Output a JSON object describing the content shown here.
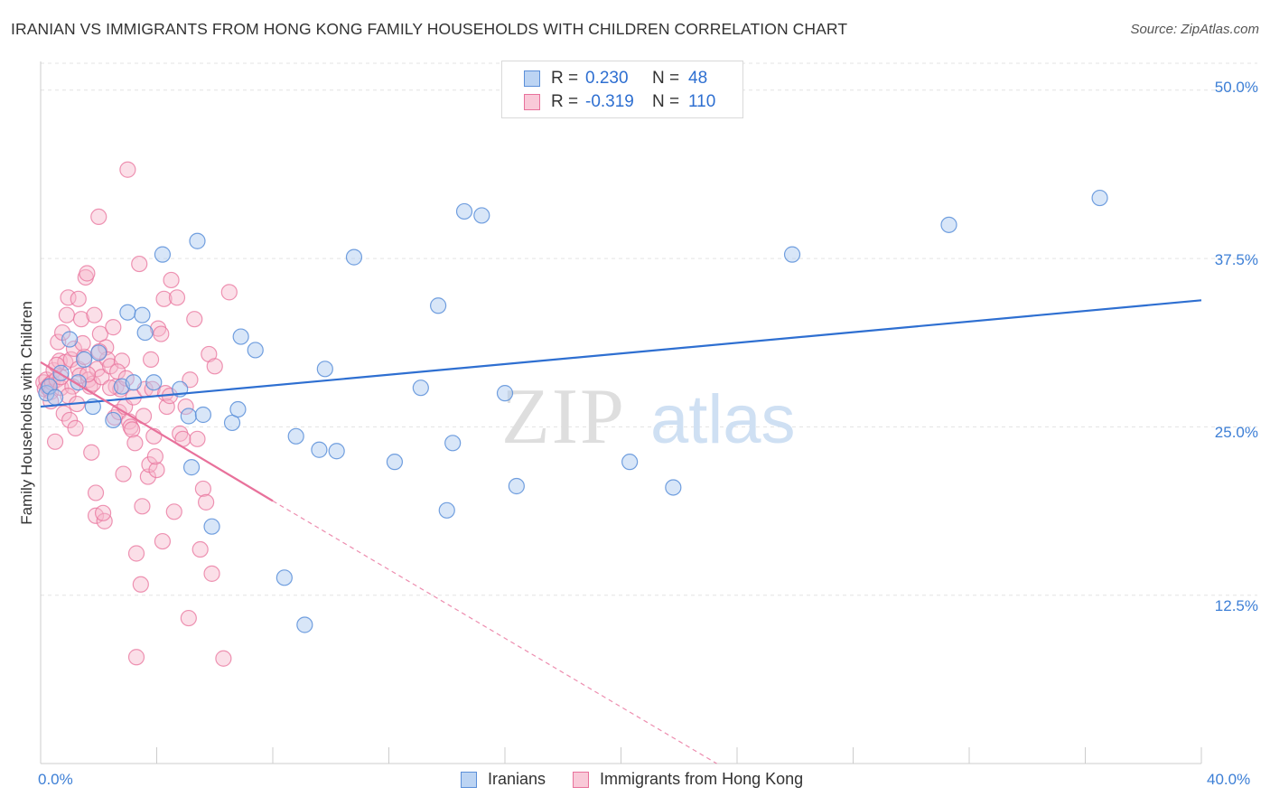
{
  "title": "IRANIAN VS IMMIGRANTS FROM HONG KONG FAMILY HOUSEHOLDS WITH CHILDREN CORRELATION CHART",
  "source": "Source: ZipAtlas.com",
  "watermark": "ZIPatlas",
  "colors": {
    "blue": "#5b8fd9",
    "blue_fill": "#a9c8f0",
    "pink": "#e8719b",
    "pink_fill": "#f7b9cd",
    "blue_line": "#2e6fd1",
    "pink_line": "#e8719b",
    "tick_text": "#3d7fd6"
  },
  "legend": {
    "r_label": "R =",
    "n_label": "N =",
    "rows": [
      {
        "r": "0.230",
        "n": "48"
      },
      {
        "r": "-0.319",
        "n": "110"
      }
    ]
  },
  "chart_data": {
    "type": "scatter",
    "ylabel": "Family Households with Children",
    "xlabel": "",
    "xlim": [
      0,
      40
    ],
    "ylim": [
      0,
      52
    ],
    "x_tick_labels": [
      "0.0%",
      "40.0%"
    ],
    "y_ticks": [
      12.5,
      25.0,
      37.5,
      50.0
    ],
    "y_tick_labels": [
      "12.5%",
      "25.0%",
      "37.5%",
      "50.0%"
    ],
    "grid": true,
    "legend_position": "top-center",
    "series": [
      {
        "name": "Iranians",
        "color": "#5b8fd9",
        "trend": {
          "x": [
            0,
            40
          ],
          "y": [
            26.5,
            34.4
          ],
          "dashed_from": null
        },
        "points": [
          [
            0.2,
            27.5
          ],
          [
            0.3,
            28.0
          ],
          [
            0.5,
            27.2
          ],
          [
            0.7,
            29.0
          ],
          [
            1.0,
            31.5
          ],
          [
            1.3,
            28.3
          ],
          [
            1.5,
            30.0
          ],
          [
            1.8,
            26.5
          ],
          [
            2.0,
            30.5
          ],
          [
            2.5,
            25.5
          ],
          [
            2.8,
            28.0
          ],
          [
            3.0,
            33.5
          ],
          [
            3.2,
            28.3
          ],
          [
            3.5,
            33.3
          ],
          [
            3.6,
            32.0
          ],
          [
            3.9,
            28.3
          ],
          [
            4.2,
            37.8
          ],
          [
            4.8,
            27.8
          ],
          [
            5.1,
            25.8
          ],
          [
            5.2,
            22.0
          ],
          [
            5.4,
            38.8
          ],
          [
            5.6,
            25.9
          ],
          [
            5.9,
            17.6
          ],
          [
            6.6,
            25.3
          ],
          [
            6.8,
            26.3
          ],
          [
            6.9,
            31.7
          ],
          [
            7.4,
            30.7
          ],
          [
            8.4,
            13.8
          ],
          [
            8.8,
            24.3
          ],
          [
            9.1,
            10.3
          ],
          [
            9.6,
            23.3
          ],
          [
            9.8,
            29.3
          ],
          [
            10.2,
            23.2
          ],
          [
            10.8,
            37.6
          ],
          [
            12.2,
            22.4
          ],
          [
            13.1,
            27.9
          ],
          [
            13.7,
            34.0
          ],
          [
            14.0,
            18.8
          ],
          [
            14.2,
            23.8
          ],
          [
            14.6,
            41.0
          ],
          [
            15.2,
            40.7
          ],
          [
            16.0,
            27.5
          ],
          [
            16.4,
            20.6
          ],
          [
            20.3,
            22.4
          ],
          [
            21.8,
            20.5
          ],
          [
            25.9,
            37.8
          ],
          [
            31.3,
            40.0
          ],
          [
            36.5,
            42.0
          ]
        ]
      },
      {
        "name": "Immigrants from Hong Kong",
        "color": "#e8719b",
        "trend": {
          "x": [
            0,
            8
          ],
          "y": [
            29.8,
            19.5
          ],
          "dashed_to": [
            23.3,
            0
          ]
        },
        "points": [
          [
            0.1,
            28.3
          ],
          [
            0.15,
            27.8
          ],
          [
            0.2,
            28.5
          ],
          [
            0.25,
            27.9
          ],
          [
            0.3,
            28.1
          ],
          [
            0.35,
            27.6
          ],
          [
            0.4,
            28.3
          ],
          [
            0.45,
            29.2
          ],
          [
            0.5,
            23.9
          ],
          [
            0.55,
            28.5
          ],
          [
            0.6,
            31.3
          ],
          [
            0.65,
            29.9
          ],
          [
            0.7,
            27.9
          ],
          [
            0.75,
            32.0
          ],
          [
            0.8,
            26.0
          ],
          [
            0.85,
            29.8
          ],
          [
            0.9,
            33.3
          ],
          [
            0.95,
            34.6
          ],
          [
            1.0,
            25.5
          ],
          [
            1.05,
            30.0
          ],
          [
            1.1,
            28.0
          ],
          [
            1.15,
            30.8
          ],
          [
            1.2,
            24.9
          ],
          [
            1.3,
            29.3
          ],
          [
            1.35,
            28.8
          ],
          [
            1.4,
            33.0
          ],
          [
            1.5,
            30.2
          ],
          [
            1.55,
            36.1
          ],
          [
            1.6,
            36.4
          ],
          [
            1.65,
            28.5
          ],
          [
            1.7,
            28.0
          ],
          [
            1.75,
            23.1
          ],
          [
            1.8,
            28.2
          ],
          [
            1.85,
            33.3
          ],
          [
            1.9,
            18.4
          ],
          [
            1.95,
            29.3
          ],
          [
            2.0,
            40.6
          ],
          [
            2.05,
            31.9
          ],
          [
            2.1,
            28.7
          ],
          [
            2.2,
            18.0
          ],
          [
            2.25,
            30.9
          ],
          [
            2.3,
            30.0
          ],
          [
            2.4,
            29.5
          ],
          [
            2.5,
            32.4
          ],
          [
            2.55,
            25.7
          ],
          [
            2.6,
            28.0
          ],
          [
            2.7,
            26.1
          ],
          [
            2.75,
            27.8
          ],
          [
            2.8,
            29.9
          ],
          [
            2.85,
            21.5
          ],
          [
            2.9,
            26.5
          ],
          [
            3.0,
            44.1
          ],
          [
            3.05,
            25.4
          ],
          [
            3.1,
            25.0
          ],
          [
            3.15,
            24.8
          ],
          [
            3.2,
            27.2
          ],
          [
            3.25,
            23.8
          ],
          [
            3.3,
            15.6
          ],
          [
            3.4,
            37.1
          ],
          [
            3.45,
            13.3
          ],
          [
            3.5,
            19.1
          ],
          [
            3.6,
            27.8
          ],
          [
            3.7,
            21.3
          ],
          [
            3.75,
            22.2
          ],
          [
            3.8,
            30.0
          ],
          [
            3.85,
            27.8
          ],
          [
            3.9,
            24.3
          ],
          [
            4.0,
            21.8
          ],
          [
            4.05,
            32.3
          ],
          [
            4.15,
            31.9
          ],
          [
            4.2,
            16.5
          ],
          [
            4.25,
            34.5
          ],
          [
            4.3,
            27.5
          ],
          [
            4.35,
            26.5
          ],
          [
            4.5,
            35.9
          ],
          [
            4.6,
            18.7
          ],
          [
            4.7,
            34.6
          ],
          [
            4.8,
            24.5
          ],
          [
            4.9,
            24.1
          ],
          [
            5.0,
            26.5
          ],
          [
            5.1,
            10.8
          ],
          [
            5.15,
            28.5
          ],
          [
            5.3,
            33.0
          ],
          [
            5.4,
            24.1
          ],
          [
            5.5,
            15.9
          ],
          [
            5.6,
            20.4
          ],
          [
            5.7,
            19.4
          ],
          [
            5.8,
            30.4
          ],
          [
            5.9,
            14.1
          ],
          [
            6.0,
            29.5
          ],
          [
            6.3,
            7.8
          ],
          [
            6.5,
            35.0
          ],
          [
            3.3,
            7.9
          ],
          [
            1.9,
            20.1
          ],
          [
            2.4,
            27.9
          ],
          [
            1.3,
            34.5
          ],
          [
            2.15,
            18.6
          ],
          [
            0.7,
            28.7
          ],
          [
            0.55,
            29.6
          ],
          [
            1.45,
            31.2
          ],
          [
            2.65,
            29.1
          ],
          [
            3.55,
            25.8
          ],
          [
            0.95,
            27.3
          ],
          [
            1.25,
            26.7
          ],
          [
            3.95,
            22.8
          ],
          [
            2.95,
            28.6
          ],
          [
            4.45,
            27.3
          ],
          [
            0.35,
            26.9
          ],
          [
            1.62,
            28.9
          ],
          [
            2.02,
            30.6
          ]
        ]
      }
    ]
  },
  "bottom_legend": [
    "Iranians",
    "Immigrants from Hong Kong"
  ]
}
